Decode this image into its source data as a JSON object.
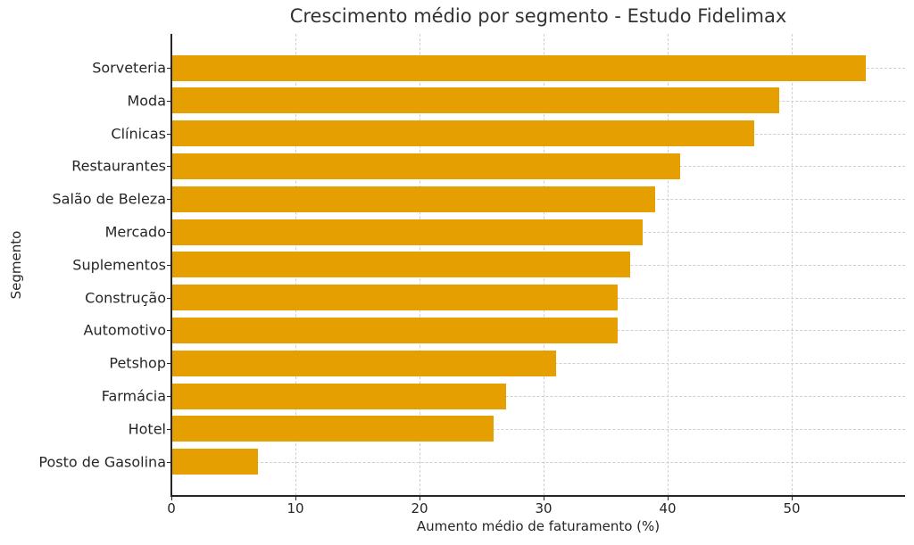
{
  "chart_data": {
    "type": "bar",
    "orientation": "horizontal",
    "title": "Crescimento médio por segmento - Estudo Fidelimax",
    "xlabel": "Aumento médio de faturamento (%)",
    "ylabel": "Segmento",
    "categories": [
      "Sorveteria",
      "Moda",
      "Clínicas",
      "Restaurantes",
      "Salão de Beleza",
      "Mercado",
      "Suplementos",
      "Construção",
      "Automotivo",
      "Petshop",
      "Farmácia",
      "Hotel",
      "Posto de Gasolina"
    ],
    "values": [
      56,
      49,
      47,
      41,
      39,
      38,
      37,
      36,
      36,
      31,
      27,
      26,
      7
    ],
    "xlim": [
      0,
      59
    ],
    "xticks": [
      "0",
      "10",
      "20",
      "30",
      "40",
      "50"
    ],
    "grid": true,
    "bar_color": "#e69f00",
    "legend": null
  }
}
